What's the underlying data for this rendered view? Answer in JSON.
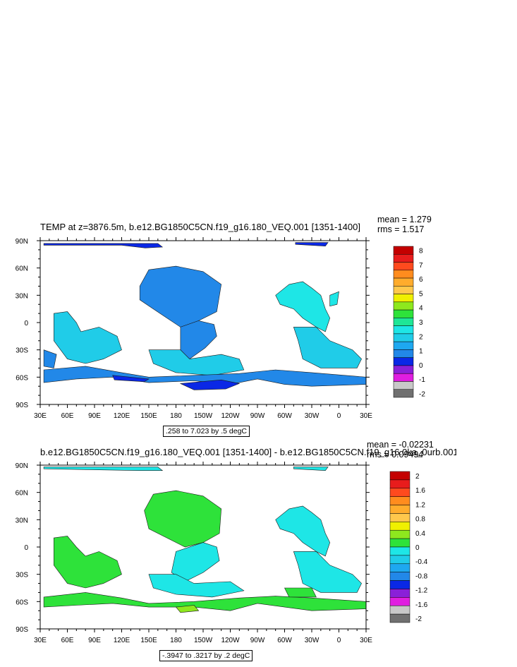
{
  "chart_data": [
    {
      "type": "heatmap",
      "title": "TEMP at z=3876.5m, b.e12.BG1850C5CN.f19_g16.180_VEQ.001 [1351-1400]",
      "stats": {
        "mean": "mean = 1.279",
        "rms": "rms = 1.517"
      },
      "range_note": ".258 to 7.023 by .5 degC",
      "x_ticks": [
        "30E",
        "60E",
        "90E",
        "120E",
        "150E",
        "180",
        "150W",
        "120W",
        "90W",
        "60W",
        "30W",
        "0",
        "30E"
      ],
      "y_ticks": [
        "90N",
        "60N",
        "30N",
        "0",
        "30S",
        "60S",
        "90S"
      ],
      "xlim": [
        30,
        390
      ],
      "ylim": [
        -90,
        90
      ],
      "colorbar": {
        "labels": [
          "8",
          "7",
          "6",
          "5",
          "4",
          "3",
          "2",
          "1",
          "0",
          "-1",
          "-2"
        ],
        "colors": [
          "#c40000",
          "#e81c1c",
          "#ff4a1e",
          "#ff8c1e",
          "#ffac2c",
          "#ffc84c",
          "#f0f000",
          "#8ee81e",
          "#2ee23a",
          "#1ee696",
          "#1ee6e6",
          "#20cce8",
          "#1ea8f0",
          "#2288e8",
          "#0a28e6",
          "#8a20d8",
          "#e01ee0",
          "#c8c8c8",
          "#707070"
        ]
      },
      "regions": [
        {
          "name": "arctic-band",
          "color": "#0a28e6",
          "pts": [
            [
              34,
              87
            ],
            [
              160,
              87
            ],
            [
              165,
              83
            ],
            [
              146,
              82
            ],
            [
              120,
              85
            ],
            [
              34,
              85
            ]
          ]
        },
        {
          "name": "arctic-band-east",
          "color": "#0a28e6",
          "pts": [
            [
              312,
              88
            ],
            [
              348,
              88
            ],
            [
              345,
              84
            ],
            [
              312,
              86
            ]
          ]
        },
        {
          "name": "north-pacific",
          "color": "#2288e8",
          "pts": [
            [
              140,
              40
            ],
            [
              150,
              58
            ],
            [
              180,
              62
            ],
            [
              210,
              56
            ],
            [
              230,
              42
            ],
            [
              225,
              12
            ],
            [
              205,
              2
            ],
            [
              185,
              -5
            ],
            [
              170,
              5
            ],
            [
              155,
              15
            ],
            [
              140,
              25
            ]
          ]
        },
        {
          "name": "east-pacific",
          "color": "#2288e8",
          "pts": [
            [
              185,
              -5
            ],
            [
              205,
              2
            ],
            [
              222,
              -2
            ],
            [
              225,
              -15
            ],
            [
              212,
              -28
            ],
            [
              195,
              -40
            ],
            [
              185,
              -30
            ]
          ]
        },
        {
          "name": "south-pacific",
          "color": "#20cce8",
          "pts": [
            [
              150,
              -30
            ],
            [
              185,
              -30
            ],
            [
              195,
              -40
            ],
            [
              230,
              -35
            ],
            [
              250,
              -40
            ],
            [
              255,
              -52
            ],
            [
              220,
              -58
            ],
            [
              180,
              -55
            ],
            [
              155,
              -45
            ]
          ]
        },
        {
          "name": "indian-ocean",
          "color": "#20cce8",
          "pts": [
            [
              45,
              10
            ],
            [
              60,
              12
            ],
            [
              70,
              0
            ],
            [
              75,
              -10
            ],
            [
              95,
              -5
            ],
            [
              115,
              -15
            ],
            [
              120,
              -30
            ],
            [
              100,
              -40
            ],
            [
              80,
              -45
            ],
            [
              60,
              -40
            ],
            [
              45,
              -20
            ]
          ]
        },
        {
          "name": "indian-west",
          "color": "#2288e8",
          "pts": [
            [
              34,
              -30
            ],
            [
              48,
              -35
            ],
            [
              45,
              -50
            ],
            [
              34,
              -48
            ]
          ]
        },
        {
          "name": "southern-ocean",
          "color": "#2288e8",
          "pts": [
            [
              34,
              -52
            ],
            [
              80,
              -48
            ],
            [
              120,
              -55
            ],
            [
              150,
              -60
            ],
            [
              200,
              -58
            ],
            [
              250,
              -56
            ],
            [
              290,
              -52
            ],
            [
              330,
              -55
            ],
            [
              390,
              -60
            ],
            [
              390,
              -68
            ],
            [
              330,
              -70
            ],
            [
              300,
              -68
            ],
            [
              270,
              -62
            ],
            [
              240,
              -68
            ],
            [
              200,
              -64
            ],
            [
              150,
              -66
            ],
            [
              110,
              -60
            ],
            [
              70,
              -62
            ],
            [
              34,
              -66
            ]
          ]
        },
        {
          "name": "ross-sea",
          "color": "#0a28e6",
          "pts": [
            [
              185,
              -67
            ],
            [
              230,
              -63
            ],
            [
              250,
              -67
            ],
            [
              235,
              -73
            ],
            [
              200,
              -74
            ]
          ]
        },
        {
          "name": "weddell-small",
          "color": "#0a28e6",
          "pts": [
            [
              110,
              -58
            ],
            [
              150,
              -62
            ],
            [
              145,
              -65
            ],
            [
              112,
              -63
            ]
          ]
        },
        {
          "name": "north-atlantic",
          "color": "#1ee6e6",
          "pts": [
            [
              290,
              30
            ],
            [
              305,
              42
            ],
            [
              320,
              45
            ],
            [
              330,
              38
            ],
            [
              340,
              30
            ],
            [
              345,
              15
            ],
            [
              350,
              5
            ],
            [
              345,
              -10
            ],
            [
              335,
              -5
            ],
            [
              320,
              5
            ],
            [
              310,
              15
            ],
            [
              295,
              20
            ]
          ]
        },
        {
          "name": "south-atlantic",
          "color": "#20cce8",
          "pts": [
            [
              310,
              -5
            ],
            [
              335,
              -5
            ],
            [
              350,
              -20
            ],
            [
              375,
              -30
            ],
            [
              385,
              -40
            ],
            [
              380,
              -50
            ],
            [
              340,
              -50
            ],
            [
              320,
              -40
            ],
            [
              315,
              -20
            ]
          ]
        },
        {
          "name": "atlantic-small",
          "color": "#1ee6e6",
          "pts": [
            [
              350,
              30
            ],
            [
              360,
              34
            ],
            [
              358,
              20
            ],
            [
              350,
              18
            ]
          ]
        }
      ]
    },
    {
      "type": "heatmap",
      "title": "b.e12.BG1850C5CN.f19_g16.180_VEQ.001 [1351-1400] - b.e12.BG1850C5CN.f19_g16.0ka_0urb.001 |",
      "stats": {
        "mean": "mean = -0.02231",
        "rms": "rms = 0.09494"
      },
      "range_note": "-.3947 to .3217 by .2 degC",
      "x_ticks": [
        "30E",
        "60E",
        "90E",
        "120E",
        "150E",
        "180",
        "150W",
        "120W",
        "90W",
        "60W",
        "30W",
        "0",
        "30E"
      ],
      "y_ticks": [
        "90N",
        "60N",
        "30N",
        "0",
        "30S",
        "60S",
        "90S"
      ],
      "xlim": [
        30,
        390
      ],
      "ylim": [
        -90,
        90
      ],
      "colorbar": {
        "labels": [
          "2",
          "1.6",
          "1.2",
          "0.8",
          "0.4",
          "0",
          "-0.4",
          "-0.8",
          "-1.2",
          "-1.6",
          "-2"
        ],
        "colors": [
          "#c40000",
          "#e81c1c",
          "#ff4a1e",
          "#ff8c1e",
          "#ffac2c",
          "#ffc84c",
          "#f0f000",
          "#8ee81e",
          "#2ee23a",
          "#1ee6e6",
          "#20cce8",
          "#1ea8f0",
          "#2288e8",
          "#0a28e6",
          "#8a20d8",
          "#e01ee0",
          "#c8c8c8",
          "#707070"
        ]
      },
      "regions": [
        {
          "name": "arctic-band",
          "color": "#1ee6e6",
          "pts": [
            [
              34,
              88
            ],
            [
              160,
              88
            ],
            [
              165,
              84
            ],
            [
              140,
              84
            ],
            [
              34,
              86
            ]
          ]
        },
        {
          "name": "arctic-band-east",
          "color": "#1ee6e6",
          "pts": [
            [
              310,
              88
            ],
            [
              348,
              88
            ],
            [
              345,
              84
            ],
            [
              310,
              86
            ]
          ]
        },
        {
          "name": "north-pacific",
          "color": "#2ee23a",
          "pts": [
            [
              145,
              40
            ],
            [
              155,
              58
            ],
            [
              180,
              62
            ],
            [
              210,
              56
            ],
            [
              230,
              42
            ],
            [
              228,
              15
            ],
            [
              210,
              5
            ],
            [
              190,
              0
            ],
            [
              170,
              10
            ],
            [
              150,
              20
            ]
          ]
        },
        {
          "name": "east-pacific",
          "color": "#1ee6e6",
          "pts": [
            [
              180,
              -5
            ],
            [
              210,
              5
            ],
            [
              225,
              0
            ],
            [
              228,
              -15
            ],
            [
              210,
              -28
            ],
            [
              190,
              -38
            ],
            [
              175,
              -28
            ]
          ]
        },
        {
          "name": "south-pacific",
          "color": "#1ee6e6",
          "pts": [
            [
              150,
              -30
            ],
            [
              180,
              -30
            ],
            [
              200,
              -40
            ],
            [
              240,
              -38
            ],
            [
              255,
              -48
            ],
            [
              220,
              -55
            ],
            [
              180,
              -52
            ],
            [
              155,
              -45
            ]
          ]
        },
        {
          "name": "indian-ocean",
          "color": "#2ee23a",
          "pts": [
            [
              45,
              10
            ],
            [
              60,
              12
            ],
            [
              70,
              0
            ],
            [
              80,
              -10
            ],
            [
              95,
              -5
            ],
            [
              115,
              -15
            ],
            [
              120,
              -30
            ],
            [
              100,
              -40
            ],
            [
              80,
              -45
            ],
            [
              60,
              -40
            ],
            [
              45,
              -20
            ]
          ]
        },
        {
          "name": "southern-ocean",
          "color": "#2ee23a",
          "pts": [
            [
              34,
              -55
            ],
            [
              80,
              -50
            ],
            [
              120,
              -56
            ],
            [
              150,
              -62
            ],
            [
              200,
              -60
            ],
            [
              250,
              -56
            ],
            [
              290,
              -54
            ],
            [
              330,
              -56
            ],
            [
              390,
              -60
            ],
            [
              390,
              -68
            ],
            [
              330,
              -70
            ],
            [
              300,
              -66
            ],
            [
              270,
              -62
            ],
            [
              240,
              -70
            ],
            [
              200,
              -66
            ],
            [
              150,
              -66
            ],
            [
              110,
              -62
            ],
            [
              70,
              -64
            ],
            [
              34,
              -66
            ]
          ]
        },
        {
          "name": "ross-sea",
          "color": "#8ee81e",
          "pts": [
            [
              180,
              -66
            ],
            [
              200,
              -64
            ],
            [
              205,
              -70
            ],
            [
              185,
              -72
            ]
          ]
        },
        {
          "name": "north-atlantic",
          "color": "#1ee6e6",
          "pts": [
            [
              290,
              30
            ],
            [
              305,
              42
            ],
            [
              320,
              45
            ],
            [
              330,
              38
            ],
            [
              340,
              30
            ],
            [
              345,
              15
            ],
            [
              350,
              5
            ],
            [
              345,
              -10
            ],
            [
              335,
              -5
            ],
            [
              320,
              5
            ],
            [
              310,
              15
            ],
            [
              295,
              20
            ]
          ]
        },
        {
          "name": "south-atlantic",
          "color": "#1ee6e6",
          "pts": [
            [
              310,
              -5
            ],
            [
              335,
              -5
            ],
            [
              350,
              -20
            ],
            [
              375,
              -30
            ],
            [
              385,
              -40
            ],
            [
              380,
              -50
            ],
            [
              340,
              -50
            ],
            [
              320,
              -40
            ],
            [
              315,
              -20
            ]
          ]
        },
        {
          "name": "atlantic-green",
          "color": "#2ee23a",
          "pts": [
            [
              300,
              -45
            ],
            [
              330,
              -45
            ],
            [
              335,
              -55
            ],
            [
              305,
              -55
            ]
          ]
        }
      ]
    }
  ]
}
